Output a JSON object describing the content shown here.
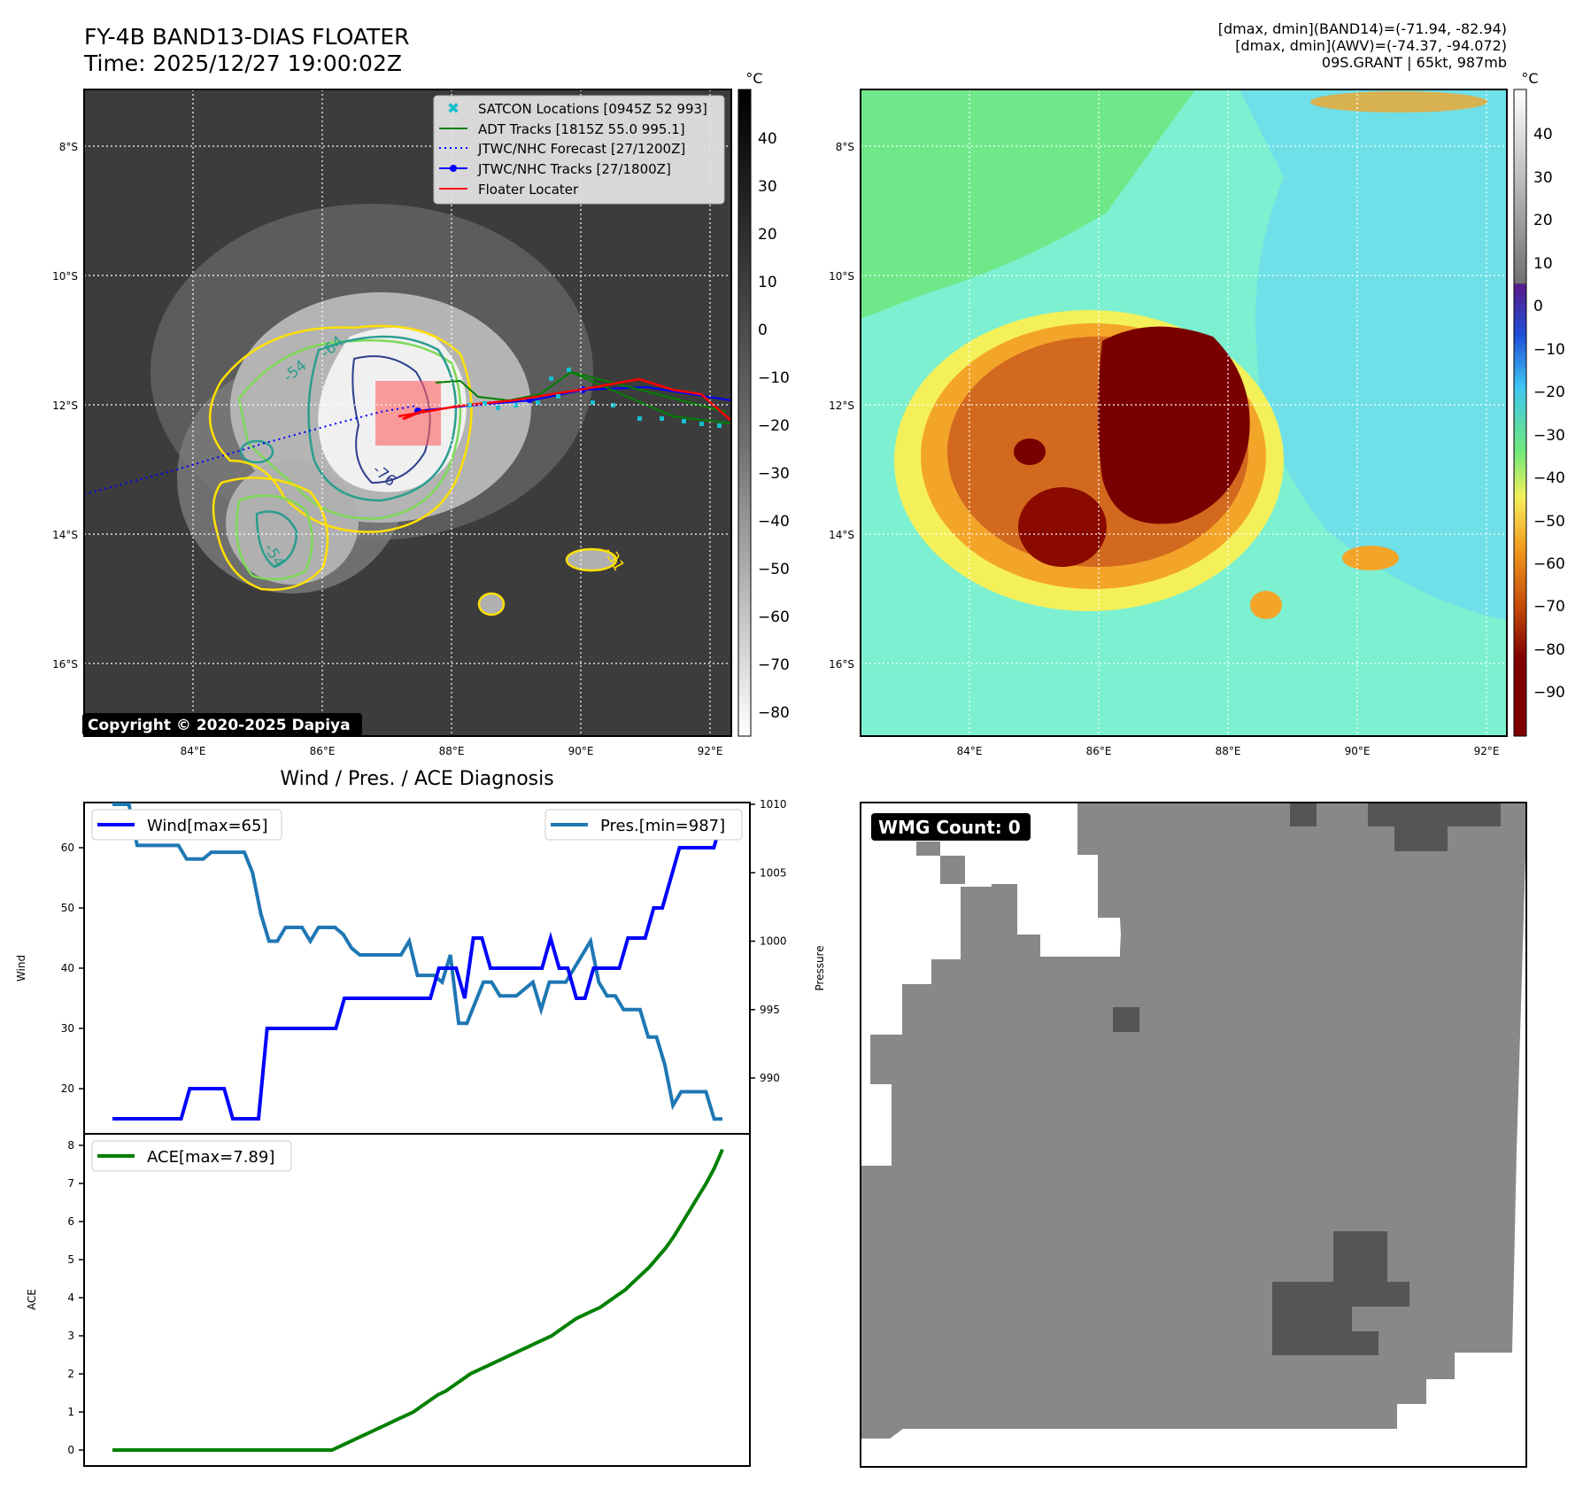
{
  "header": {
    "title_line1": "FY-4B BAND13-DIAS FLOATER",
    "title_line2": "Time: 2025/12/27 19:00:02Z",
    "info_line1": "[dmax, dmin](BAND14)=(-71.94, -82.94)",
    "info_line2": "[dmax, dmin](AWV)=(-74.37, -94.072)",
    "info_line3": "09S.GRANT | 65kt, 987mb"
  },
  "map_panel": {
    "lat_labels": [
      "8°S",
      "10°S",
      "12°S",
      "14°S",
      "16°S"
    ],
    "lon_labels": [
      "84°E",
      "86°E",
      "88°E",
      "90°E",
      "92°E"
    ],
    "copyright": "Copyright © 2020-2025 Dapiya",
    "contour_labels": [
      "-54",
      "-64",
      "-76",
      "-54",
      "-31"
    ],
    "legend": [
      {
        "label": "SATCON Locations [0945Z 52 993]",
        "color": "#17becf"
      },
      {
        "label": "ADT Tracks [1815Z 55.0 995.1]",
        "color": "#008000"
      },
      {
        "label": "JTWC/NHC Forecast [27/1200Z]",
        "color": "#0000ff"
      },
      {
        "label": "JTWC/NHC Tracks [27/1800Z]",
        "color": "#0000ff"
      },
      {
        "label": "Floater Locater",
        "color": "#ff0000"
      }
    ],
    "colorbar_unit": "°C",
    "colorbar_ticks": [
      "40",
      "30",
      "20",
      "10",
      "0",
      "−10",
      "−20",
      "−30",
      "−40",
      "−50",
      "−60",
      "−70",
      "−80"
    ]
  },
  "awv_panel": {
    "lat_labels": [
      "8°S",
      "10°S",
      "12°S",
      "14°S",
      "16°S"
    ],
    "lon_labels": [
      "84°E",
      "86°E",
      "88°E",
      "90°E",
      "92°E"
    ],
    "colorbar_unit": "°C",
    "colorbar_ticks": [
      "40",
      "30",
      "20",
      "10",
      "0",
      "−10",
      "−20",
      "−30",
      "−40",
      "−50",
      "−60",
      "−70",
      "−80",
      "−90"
    ]
  },
  "diagnosis": {
    "title": "Wind / Pres. / ACE Diagnosis",
    "wind_legend": "Wind[max=65]",
    "pres_legend": "Pres.[min=987]",
    "ace_legend": "ACE[max=7.89]",
    "wind_ylabel": "Wind",
    "pres_ylabel": "Pressure",
    "ace_ylabel": "ACE",
    "wind_color": "#0000ff",
    "pres_color": "#1f77b4",
    "ace_color": "#008000"
  },
  "wmg_panel": {
    "badge": "WMG Count: 0"
  },
  "chart_data": [
    {
      "type": "line",
      "name": "wind",
      "x": [
        0,
        1,
        2,
        3,
        4,
        5,
        6,
        7,
        8,
        9,
        10,
        11,
        12,
        13,
        14,
        15,
        16,
        17,
        18,
        19,
        20,
        21,
        22,
        23,
        24,
        25,
        26,
        27,
        28,
        29,
        30,
        31,
        32,
        33,
        34,
        35,
        36,
        37,
        38,
        39,
        40,
        41,
        42,
        43,
        44,
        45,
        46,
        47,
        48,
        49,
        50,
        51,
        52,
        53,
        54,
        55,
        56,
        57,
        58,
        59,
        60,
        61,
        62,
        63,
        64,
        65,
        66,
        67,
        68,
        69,
        70,
        71
      ],
      "series": [
        {
          "name": "Wind[max=65]",
          "values": [
            15,
            15,
            15,
            15,
            15,
            15,
            15,
            15,
            15,
            20,
            20,
            20,
            20,
            20,
            15,
            15,
            15,
            15,
            30,
            30,
            30,
            30,
            30,
            30,
            30,
            30,
            30,
            35,
            35,
            35,
            35,
            35,
            35,
            35,
            35,
            35,
            35,
            35,
            40,
            40,
            40,
            35,
            45,
            45,
            40,
            40,
            40,
            40,
            40,
            40,
            40,
            45,
            40,
            40,
            35,
            35,
            40,
            40,
            40,
            40,
            45,
            45,
            45,
            50,
            50,
            55,
            60,
            60,
            60,
            60,
            60,
            65
          ]
        }
      ],
      "ylim": [
        15,
        67
      ]
    },
    {
      "type": "line",
      "name": "pressure",
      "series": [
        {
          "name": "Pres.[min=987]",
          "values": [
            1010,
            1010,
            1010,
            1007,
            1007,
            1007,
            1007,
            1007,
            1007,
            1006,
            1006,
            1006,
            1006.5,
            1006.5,
            1006.5,
            1006.5,
            1006.5,
            1005,
            1002,
            1000,
            1000,
            1001,
            1001,
            1001,
            1000,
            1001,
            1001,
            1001,
            1000.5,
            999.5,
            999,
            999,
            999,
            999,
            999,
            999,
            1000,
            997.5,
            997.5,
            997.5,
            997,
            999,
            994,
            994,
            995.5,
            997,
            997,
            996,
            996,
            996,
            996.5,
            997,
            995,
            997,
            997,
            997,
            998,
            999,
            1000,
            997,
            996,
            996,
            995,
            995,
            995,
            993,
            993,
            991,
            988,
            989,
            989,
            989,
            989,
            987,
            987
          ]
        }
      ],
      "ylim": [
        987,
        1010
      ]
    },
    {
      "type": "line",
      "name": "ace",
      "series": [
        {
          "name": "ACE[max=7.89]",
          "values": [
            0,
            0,
            0,
            0,
            0,
            0,
            0,
            0,
            0,
            0,
            0,
            0,
            0,
            0,
            0,
            0,
            0,
            0,
            0,
            0,
            0,
            0,
            0,
            0,
            0,
            0,
            0,
            0,
            0.1,
            0.2,
            0.3,
            0.4,
            0.5,
            0.6,
            0.7,
            0.8,
            0.9,
            1.0,
            1.15,
            1.3,
            1.45,
            1.55,
            1.7,
            1.85,
            2.0,
            2.1,
            2.2,
            2.3,
            2.4,
            2.5,
            2.6,
            2.7,
            2.8,
            2.9,
            3.0,
            3.15,
            3.3,
            3.45,
            3.55,
            3.65,
            3.75,
            3.9,
            4.05,
            4.2,
            4.4,
            4.6,
            4.8,
            5.05,
            5.3,
            5.6,
            5.95,
            6.3,
            6.65,
            7.0,
            7.4,
            7.89
          ]
        }
      ],
      "ylim": [
        0,
        8
      ]
    }
  ]
}
